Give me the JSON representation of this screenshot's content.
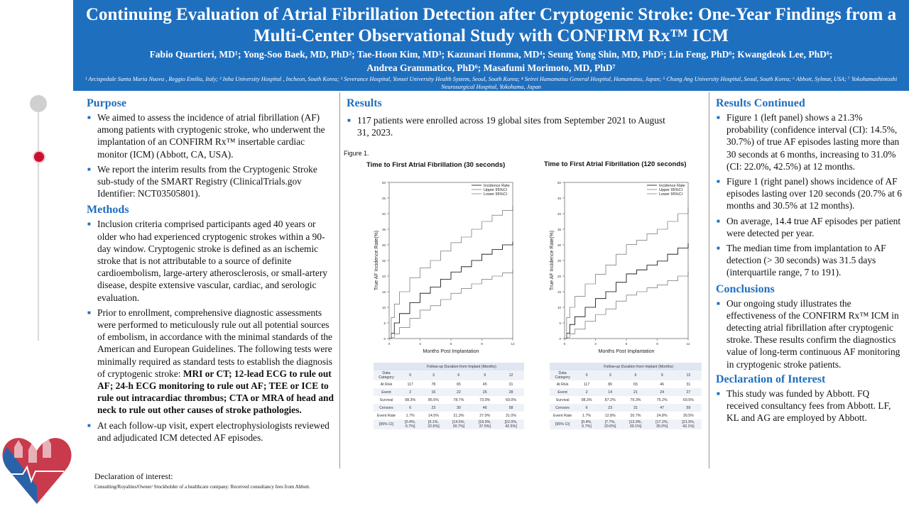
{
  "header": {
    "title": "Continuing Evaluation of Atrial Fibrillation Detection after Cryptogenic Stroke: One-Year Findings from a Multi-Center Observational Study with CONFIRM Rx™ ICM",
    "authors_line1": "Fabio Quartieri, MD¹; Yong-Soo Baek, MD, PhD²; Tae-Hoon Kim, MD³; Kazunari Honma, MD⁴; Seung Yong Shin, MD, PhD⁵; Lin Feng, PhD⁶; Kwangdeok Lee, PhD⁶;",
    "authors_line2": "Andrea Grammatico, PhD⁶; Masafumi Morimoto, MD, PhD⁷",
    "affiliations": "¹ Arcispedale Santa Maria Nuova , Reggio Emilia, Italy; ² Inha University Hospital , Incheon, South Korea; ³ Severance Hospital, Yonsei University Health System, Seoul, South Korea; ⁴ Seirei Hamamatsu General Hospital, Hamamatsu, Japan; ⁵ Chung Ang University Hospital, Seoul, South Korea; ⁶ Abbott, Sylmar, USA; ⁷ Yokohamashintoshi Neurosurgical Hospital, Yokohama, Japan"
  },
  "purpose": {
    "heading": "Purpose",
    "items": [
      "We aimed to assess the incidence of atrial fibrillation (AF) among patients with cryptogenic stroke, who underwent the implantation of an CONFIRM Rx™ insertable cardiac monitor (ICM) (Abbott, CA, USA).",
      "We report the interim results from the Cryptogenic Stroke sub-study of the SMART Registry (ClinicalTrials.gov Identifier: NCT03505801)."
    ]
  },
  "methods": {
    "heading": "Methods",
    "item1": "Inclusion criteria comprised participants aged 40 years or older who had experienced cryptogenic strokes within a 90-day window. Cryptogenic stroke is defined as an ischemic stroke that is not attributable to a source of definite cardioembolism, large-artery atherosclerosis, or small-artery disease, despite extensive vascular, cardiac, and serologic evaluation.",
    "item2_text": "Prior to enrollment, comprehensive diagnostic assessments were performed to meticulously rule out all potential sources of embolism, in accordance with the minimal standards of the American and European Guidelines. The following tests were minimally required as standard tests to establish the diagnosis of cryptogenic stroke: ",
    "item2_bold": "MRI or CT; 12-lead ECG to rule out AF; 24-h ECG monitoring to rule out AF; TEE or ICE to rule out intracardiac thrombus; CTA or MRA of head and neck to rule out other causes of stroke pathologies.",
    "item3": "At each follow-up visit, expert electrophysiologists reviewed and adjudicated ICM detected AF episodes."
  },
  "results": {
    "heading": "Results",
    "items": [
      "117 patients were enrolled across 19 global sites from September 2021 to August 31, 2023."
    ],
    "figure_label": "Figure 1."
  },
  "chart_data": [
    {
      "type": "line",
      "title": "Time to First Atrial Fibrillation (30 seconds)",
      "xlabel": "Months Post Implantation",
      "ylabel": "True AF Incidence Rate(%)",
      "xlim": [
        0,
        12
      ],
      "ylim": [
        0,
        50
      ],
      "xticks": [
        "0",
        "3",
        "6",
        "9",
        "12"
      ],
      "yticks": [
        "0",
        "5",
        "10",
        "15",
        "20",
        "25",
        "30",
        "35",
        "40",
        "45",
        "50"
      ],
      "legend": "top-right",
      "series": [
        {
          "name": "Incidence Rate",
          "x": [
            0,
            0.2,
            0.5,
            1,
            2,
            3,
            4,
            5,
            6,
            7,
            8,
            9,
            10,
            11,
            12
          ],
          "y": [
            0,
            1.7,
            5,
            8,
            11.5,
            14.5,
            16.5,
            19,
            21.3,
            23,
            25,
            27,
            28.5,
            30,
            31
          ]
        },
        {
          "name": "Upper 95%CI",
          "x": [
            0,
            0.2,
            0.5,
            1,
            2,
            3,
            4,
            5,
            6,
            7,
            8,
            9,
            10,
            11,
            12
          ],
          "y": [
            0,
            6.7,
            11,
            15,
            19.5,
            22.6,
            25,
            28,
            30.7,
            32.5,
            35,
            37.5,
            39.5,
            41,
            42.5
          ]
        },
        {
          "name": "Lower 95%CI",
          "x": [
            0,
            0.2,
            0.5,
            1,
            2,
            3,
            4,
            5,
            6,
            7,
            8,
            9,
            10,
            11,
            12
          ],
          "y": [
            0,
            0.4,
            1.5,
            3.5,
            6.5,
            9.1,
            10.5,
            12.5,
            14.5,
            16,
            17.5,
            19,
            20,
            21,
            22
          ]
        }
      ],
      "table": {
        "title": "Follow-up Duration from Implant (Months)",
        "header": [
          "Data Category",
          "0",
          "3",
          "6",
          "9",
          "12"
        ],
        "rows": [
          [
            "At Risk",
            "117",
            "78",
            "65",
            "45",
            "31"
          ],
          [
            "Event",
            "2",
            "16",
            "22",
            "26",
            "28"
          ],
          [
            "Survival",
            "98.3%",
            "85.5%",
            "78.7%",
            "73.0%",
            "69.0%"
          ],
          [
            "Censors",
            "6",
            "23",
            "30",
            "46",
            "58"
          ],
          [
            "Event Rate",
            "1.7%",
            "14.5%",
            "21.3%",
            "27.0%",
            "31.0%"
          ],
          [
            "[95% CI]",
            "[0.4%, 6.7%]",
            "[9.1%, 22.6%]",
            "[14.5%, 30.7%]",
            "[19.0%, 37.5%]",
            "[22.0%, 42.5%]"
          ]
        ]
      }
    },
    {
      "type": "line",
      "title": "Time to First Atrial Fibrillation (120 seconds)",
      "xlabel": "Months Post Implantation",
      "ylabel": "True AF Incidence Rate(%)",
      "xlim": [
        0,
        12
      ],
      "ylim": [
        0,
        50
      ],
      "xticks": [
        "0",
        "3",
        "6",
        "9",
        "12"
      ],
      "yticks": [
        "0",
        "5",
        "10",
        "15",
        "20",
        "25",
        "30",
        "35",
        "40",
        "45",
        "50"
      ],
      "legend": "top-right",
      "series": [
        {
          "name": "Incidence Rate",
          "x": [
            0,
            0.2,
            0.5,
            1,
            2,
            3,
            4,
            5,
            6,
            7,
            8,
            9,
            10,
            11,
            12
          ],
          "y": [
            0,
            1.7,
            4.5,
            7,
            10,
            12.8,
            15,
            18,
            20.7,
            22,
            23.5,
            24.8,
            27,
            29,
            30.5
          ]
        },
        {
          "name": "Upper 95%CI",
          "x": [
            0,
            0.2,
            0.5,
            1,
            2,
            3,
            4,
            5,
            6,
            7,
            8,
            9,
            10,
            11,
            12
          ],
          "y": [
            0,
            6.7,
            10,
            13.5,
            17.5,
            20.6,
            23.5,
            27,
            30.1,
            31.5,
            33.5,
            35,
            37.5,
            40,
            42.1
          ]
        },
        {
          "name": "Lower 95%CI",
          "x": [
            0,
            0.2,
            0.5,
            1,
            2,
            3,
            4,
            5,
            6,
            7,
            8,
            9,
            10,
            11,
            12
          ],
          "y": [
            0,
            0.4,
            1.5,
            3,
            5.5,
            7.7,
            9.5,
            12,
            13.9,
            15,
            16.2,
            17.2,
            18.5,
            20,
            21.5
          ]
        }
      ],
      "table": {
        "title": "Follow-up Duration from Implant (Months)",
        "header": [
          "Data Category",
          "0",
          "3",
          "6",
          "9",
          "12"
        ],
        "rows": [
          [
            "At Risk",
            "117",
            "80",
            "65",
            "46",
            "31"
          ],
          [
            "Event",
            "2",
            "14",
            "21",
            "24",
            "27"
          ],
          [
            "Survival",
            "98.3%",
            "87.2%",
            "79.3%",
            "75.2%",
            "69.5%"
          ],
          [
            "Censors",
            "6",
            "23",
            "31",
            "47",
            "59"
          ],
          [
            "Event Rate",
            "1.7%",
            "12.8%",
            "20.7%",
            "24.8%",
            "30.5%"
          ],
          [
            "[95% CI]",
            "[0.4%, 6.7%]",
            "[7.7%, 20.6%]",
            "[13.9%, 30.1%]",
            "[17.2%, 35.0%]",
            "[21.5%, 42.1%]"
          ]
        ]
      }
    }
  ],
  "results_continued": {
    "heading": "Results Continued",
    "items": [
      "Figure 1 (left panel) shows a 21.3% probability (confidence interval (CI): 14.5%, 30.7%) of true AF episodes lasting more than 30 seconds at 6 months, increasing to 31.0% (CI: 22.0%, 42.5%) at 12 months.",
      "Figure 1 (right panel) shows incidence of AF episodes lasting over 120 seconds (20.7% at 6 months and 30.5% at 12 months).",
      "On average, 14.4 true AF episodes per patient were detected per year.",
      "The median time from implantation to AF detection (> 30 seconds) was 31.5 days (interquartile range, 7 to 191)."
    ]
  },
  "conclusions": {
    "heading": "Conclusions",
    "items": [
      "Our ongoing study illustrates the effectiveness of the CONFIRM Rx™ ICM in detecting atrial fibrillation after cryptogenic stroke. These results confirm the diagnostics value of long-term continuous AF monitoring in cryptogenic stroke patients."
    ]
  },
  "declaration": {
    "heading": "Declaration of Interest",
    "items": [
      "This study was funded by Abbott. FQ received consultancy fees from Abbott. LF, KL and AG are employed by Abbott."
    ]
  },
  "footer": {
    "title": "Declaration of interest:",
    "text": "Consulting/Royalties/Owner/ Stockholder of a healthcare company: Received consultancy fees from Abbott."
  },
  "colors": {
    "accent": "#1f6fbf",
    "red_dot": "#c8102e"
  }
}
